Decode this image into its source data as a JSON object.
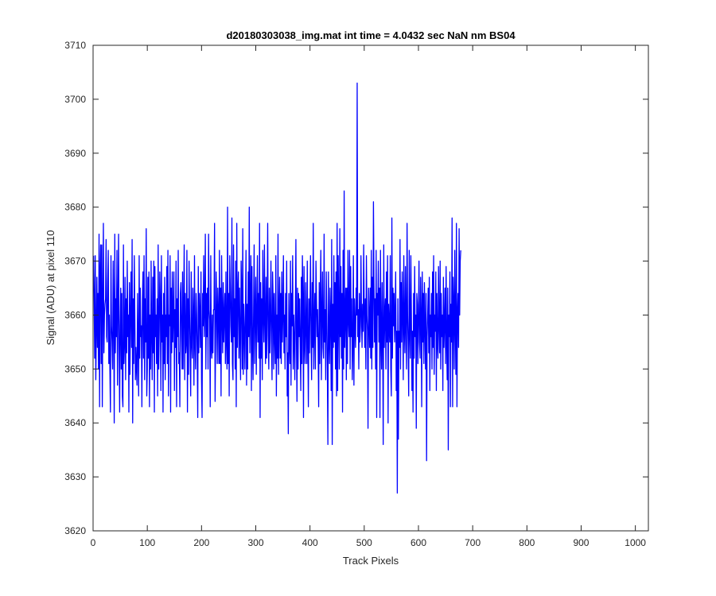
{
  "chart_data": {
    "type": "line",
    "title": "d20180303038_img.mat int time = 4.0432 sec  NaN nm BS04",
    "xlabel": "Track Pixels",
    "ylabel": "Signal (ADU) at pixel 110",
    "xlim": [
      0,
      1024
    ],
    "ylim": [
      3620,
      3710
    ],
    "xticks": [
      0,
      100,
      200,
      300,
      400,
      500,
      600,
      700,
      800,
      900,
      1000
    ],
    "yticks": [
      3620,
      3630,
      3640,
      3650,
      3660,
      3670,
      3680,
      3690,
      3700,
      3710
    ],
    "grid": false,
    "legend": "none",
    "series": [
      {
        "color": "#0000ff",
        "x_start": 1,
        "x_step": 1,
        "values": [
          3671,
          3662,
          3652,
          3671,
          3648,
          3657,
          3667,
          3654,
          3664,
          3650,
          3675,
          3643,
          3668,
          3673,
          3651,
          3673,
          3643,
          3662,
          3677,
          3653,
          3660,
          3662,
          3663,
          3674,
          3656,
          3655,
          3666,
          3672,
          3651,
          3660,
          3650,
          3642,
          3671,
          3658,
          3655,
          3650,
          3670,
          3661,
          3640,
          3675,
          3653,
          3663,
          3656,
          3672,
          3647,
          3662,
          3675,
          3654,
          3642,
          3658,
          3665,
          3650,
          3664,
          3645,
          3643,
          3673,
          3651,
          3655,
          3667,
          3648,
          3663,
          3653,
          3670,
          3656,
          3660,
          3642,
          3666,
          3649,
          3660,
          3668,
          3654,
          3674,
          3640,
          3663,
          3651,
          3671,
          3660,
          3648,
          3654,
          3650,
          3647,
          3664,
          3655,
          3645,
          3671,
          3652,
          3665,
          3656,
          3658,
          3643,
          3663,
          3668,
          3652,
          3671,
          3648,
          3663,
          3655,
          3676,
          3645,
          3650,
          3667,
          3652,
          3668,
          3643,
          3660,
          3650,
          3670,
          3656,
          3648,
          3667,
          3653,
          3670,
          3642,
          3669,
          3656,
          3660,
          3651,
          3663,
          3645,
          3673,
          3650,
          3657,
          3668,
          3662,
          3646,
          3671,
          3655,
          3660,
          3642,
          3664,
          3651,
          3667,
          3648,
          3660,
          3656,
          3669,
          3651,
          3672,
          3645,
          3660,
          3658,
          3671,
          3642,
          3665,
          3653,
          3668,
          3655,
          3660,
          3668,
          3646,
          3661,
          3654,
          3670,
          3643,
          3663,
          3656,
          3672,
          3651,
          3653,
          3643,
          3664,
          3666,
          3656,
          3650,
          3668,
          3650,
          3661,
          3673,
          3648,
          3664,
          3653,
          3655,
          3672,
          3642,
          3663,
          3649,
          3670,
          3660,
          3653,
          3645,
          3668,
          3655,
          3652,
          3665,
          3660,
          3647,
          3671,
          3655,
          3650,
          3664,
          3660,
          3653,
          3641,
          3669,
          3653,
          3664,
          3660,
          3654,
          3668,
          3648,
          3641,
          3664,
          3658,
          3671,
          3656,
          3661,
          3675,
          3650,
          3664,
          3656,
          3665,
          3650,
          3675,
          3661,
          3659,
          3643,
          3671,
          3654,
          3652,
          3660,
          3653,
          3661,
          3661,
          3677,
          3644,
          3655,
          3668,
          3661,
          3651,
          3665,
          3660,
          3651,
          3672,
          3651,
          3665,
          3645,
          3671,
          3660,
          3653,
          3666,
          3655,
          3660,
          3664,
          3651,
          3668,
          3655,
          3650,
          3680,
          3651,
          3664,
          3645,
          3671,
          3665,
          3658,
          3655,
          3678,
          3651,
          3648,
          3673,
          3656,
          3663,
          3650,
          3670,
          3643,
          3677,
          3654,
          3664,
          3668,
          3652,
          3665,
          3656,
          3648,
          3670,
          3664,
          3650,
          3676,
          3649,
          3662,
          3657,
          3650,
          3660,
          3672,
          3647,
          3662,
          3650,
          3668,
          3656,
          3680,
          3653,
          3662,
          3671,
          3646,
          3669,
          3655,
          3648,
          3661,
          3673,
          3651,
          3660,
          3667,
          3649,
          3660,
          3671,
          3655,
          3664,
          3652,
          3677,
          3641,
          3666,
          3652,
          3663,
          3648,
          3672,
          3660,
          3655,
          3673,
          3659,
          3651,
          3667,
          3652,
          3661,
          3677,
          3656,
          3650,
          3665,
          3653,
          3660,
          3670,
          3655,
          3648,
          3668,
          3663,
          3650,
          3664,
          3656,
          3651,
          3671,
          3645,
          3660,
          3652,
          3675,
          3649,
          3660,
          3667,
          3652,
          3664,
          3651,
          3668,
          3655,
          3660,
          3671,
          3653,
          3660,
          3650,
          3664,
          3656,
          3670,
          3645,
          3653,
          3638,
          3664,
          3655,
          3651,
          3670,
          3647,
          3664,
          3658,
          3671,
          3650,
          3660,
          3656,
          3648,
          3660,
          3674,
          3655,
          3644,
          3665,
          3650,
          3664,
          3656,
          3663,
          3654,
          3646,
          3667,
          3651,
          3671,
          3663,
          3641,
          3669,
          3655,
          3651,
          3666,
          3658,
          3651,
          3670,
          3655,
          3643,
          3663,
          3653,
          3662,
          3671,
          3655,
          3648,
          3666,
          3654,
          3677,
          3650,
          3658,
          3664,
          3650,
          3670,
          3663,
          3656,
          3661,
          3654,
          3643,
          3666,
          3651,
          3664,
          3672,
          3648,
          3660,
          3668,
          3654,
          3652,
          3675,
          3655,
          3661,
          3648,
          3668,
          3660,
          3650,
          3636,
          3668,
          3656,
          3651,
          3665,
          3660,
          3646,
          3674,
          3636,
          3662,
          3654,
          3671,
          3655,
          3666,
          3650,
          3668,
          3645,
          3677,
          3646,
          3671,
          3660,
          3650,
          3676,
          3656,
          3669,
          3652,
          3664,
          3642,
          3672,
          3650,
          3683,
          3654,
          3660,
          3665,
          3648,
          3665,
          3651,
          3672,
          3659,
          3656,
          3672,
          3650,
          3669,
          3656,
          3663,
          3648,
          3655,
          3671,
          3647,
          3663,
          3658,
          3654,
          3665,
          3660,
          3703,
          3656,
          3661,
          3650,
          3664,
          3655,
          3658,
          3671,
          3660,
          3654,
          3662,
          3657,
          3673,
          3661,
          3654,
          3663,
          3650,
          3671,
          3660,
          3657,
          3639,
          3665,
          3660,
          3654,
          3665,
          3652,
          3672,
          3650,
          3667,
          3654,
          3681,
          3666,
          3655,
          3663,
          3650,
          3672,
          3641,
          3664,
          3660,
          3670,
          3655,
          3665,
          3641,
          3672,
          3656,
          3650,
          3666,
          3657,
          3636,
          3673,
          3654,
          3660,
          3663,
          3650,
          3668,
          3655,
          3671,
          3640,
          3662,
          3658,
          3655,
          3671,
          3650,
          3645,
          3678,
          3652,
          3665,
          3658,
          3664,
          3655,
          3660,
          3668,
          3646,
          3657,
          3627,
          3663,
          3637,
          3657,
          3654,
          3674,
          3650,
          3666,
          3655,
          3668,
          3660,
          3648,
          3671,
          3658,
          3653,
          3669,
          3658,
          3650,
          3677,
          3660,
          3654,
          3645,
          3672,
          3657,
          3652,
          3671,
          3660,
          3646,
          3657,
          3642,
          3664,
          3652,
          3669,
          3656,
          3660,
          3639,
          3664,
          3662,
          3651,
          3659,
          3670,
          3655,
          3652,
          3667,
          3660,
          3643,
          3668,
          3655,
          3664,
          3651,
          3666,
          3658,
          3650,
          3664,
          3633,
          3656,
          3660,
          3665,
          3653,
          3667,
          3646,
          3660,
          3656,
          3664,
          3650,
          3668,
          3654,
          3671,
          3649,
          3660,
          3657,
          3668,
          3646,
          3664,
          3655,
          3652,
          3669,
          3658,
          3653,
          3670,
          3650,
          3664,
          3656,
          3660,
          3646,
          3667,
          3654,
          3658,
          3665,
          3651,
          3669,
          3655,
          3648,
          3665,
          3635,
          3660,
          3656,
          3668,
          3643,
          3662,
          3655,
          3678,
          3643,
          3667,
          3662,
          3650,
          3672,
          3658,
          3649,
          3677,
          3643,
          3660,
          3664,
          3654,
          3676,
          3660,
          3670,
          3672
        ]
      }
    ]
  }
}
